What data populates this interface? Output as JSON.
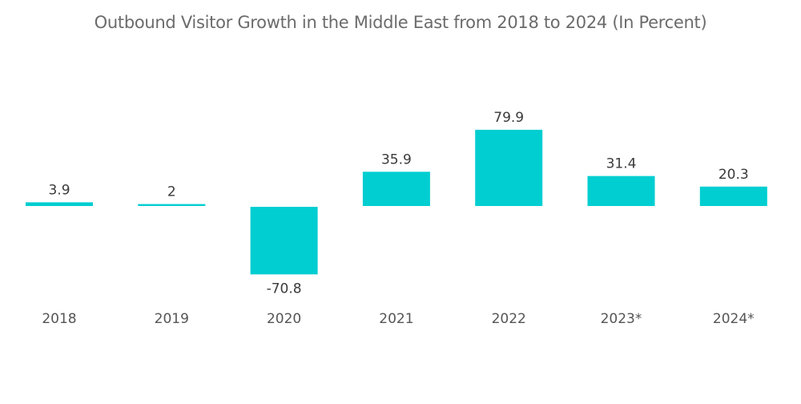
{
  "chart_data": {
    "type": "bar",
    "title": "Outbound Visitor Growth in the Middle East from 2018 to 2024 (In Percent)",
    "xlabel": "",
    "ylabel": "",
    "categories": [
      "2018",
      "2019",
      "2020",
      "2021",
      "2022",
      "2023*",
      "2024*"
    ],
    "values": [
      3.9,
      2,
      -70.8,
      35.9,
      79.9,
      31.4,
      20.3
    ],
    "value_labels": [
      "3.9",
      "2",
      "-70.8",
      "35.9",
      "79.9",
      "31.4",
      "20.3"
    ],
    "ylim": [
      -80,
      90
    ],
    "grid": false,
    "legend": "none",
    "bar_color": "#00CED1"
  }
}
